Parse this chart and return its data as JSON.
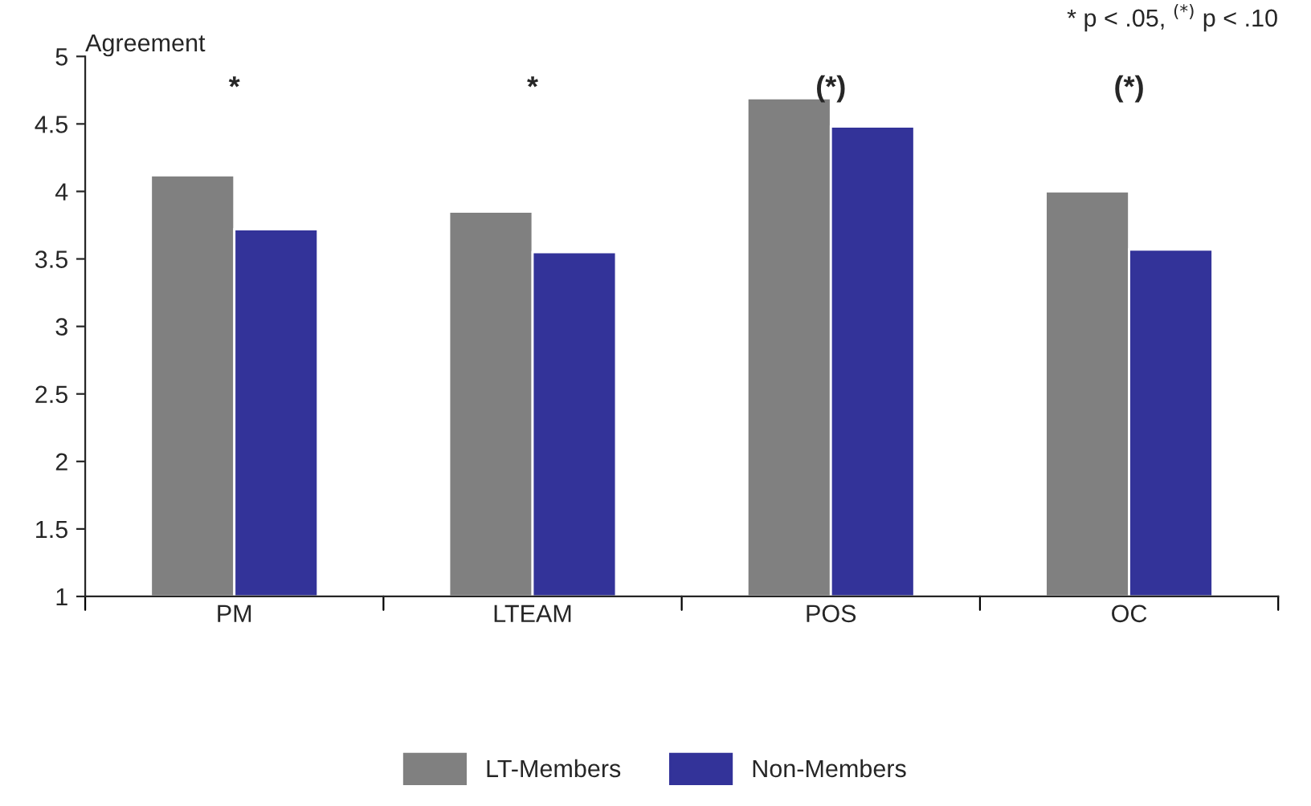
{
  "chart_data": {
    "type": "bar",
    "ylabel": "Agreement",
    "categories": [
      "PM",
      "LTEAM",
      "POS",
      "OC"
    ],
    "series": [
      {
        "name": "LT-Members",
        "color": "#808080",
        "values": [
          4.12,
          3.85,
          4.69,
          4.0
        ]
      },
      {
        "name": "Non-Members",
        "color": "#333399",
        "values": [
          3.72,
          3.55,
          4.48,
          3.57
        ]
      }
    ],
    "ylim": [
      1,
      5
    ],
    "yticks": [
      1,
      1.5,
      2,
      2.5,
      3,
      3.5,
      4,
      4.5,
      5
    ],
    "annotations": [
      "*",
      "*",
      "(*)",
      "(*)",
      "* p < .05, $^{(*)}$ p < .10"
    ],
    "grid": false,
    "legend": "bottom"
  }
}
